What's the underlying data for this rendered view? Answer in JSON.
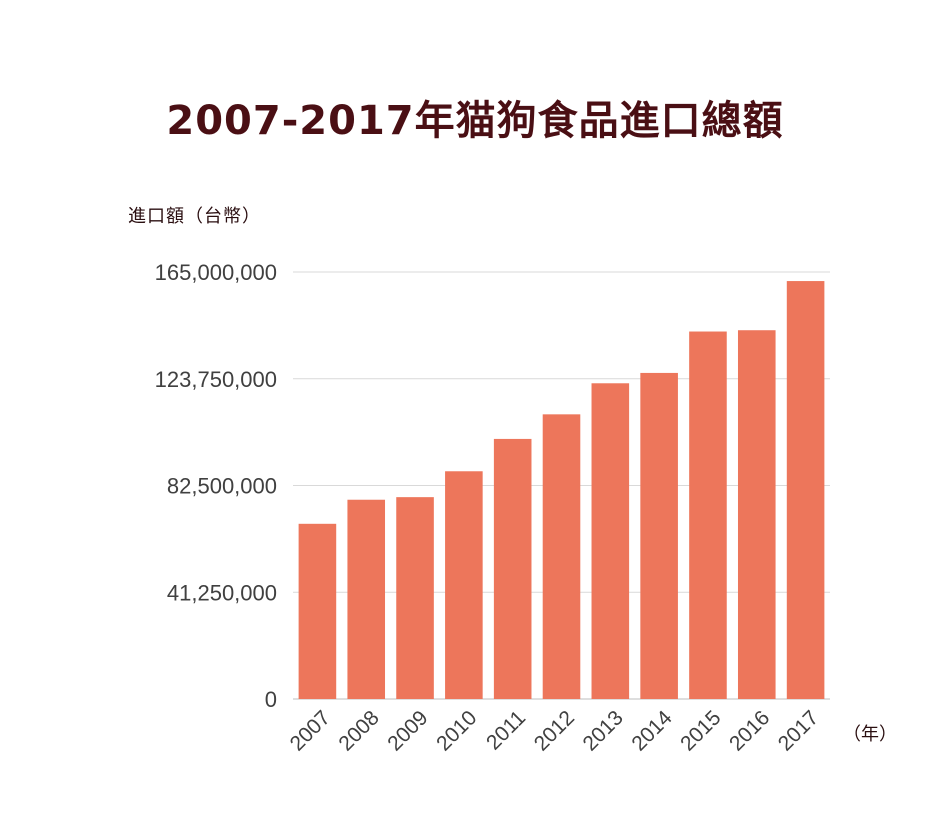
{
  "chart_data": {
    "type": "bar",
    "title": "2007-2017年猫狗食品進口總額",
    "ylabel": "進口額（台幣）",
    "xlabel": "（年）",
    "categories": [
      "2007",
      "2008",
      "2009",
      "2010",
      "2011",
      "2012",
      "2013",
      "2014",
      "2015",
      "2016",
      "2017"
    ],
    "values": [
      67700000,
      77000000,
      78000000,
      88000000,
      100500000,
      110000000,
      122000000,
      126000000,
      142000000,
      142500000,
      161500000
    ],
    "ylim": [
      0,
      165000000
    ],
    "yticks": [
      0,
      41250000,
      82500000,
      123750000,
      165000000
    ],
    "ytick_labels": [
      "0",
      "41,250,000",
      "82,500,000",
      "123,750,000",
      "165,000,000"
    ],
    "grid": true,
    "bar_color": "#ed765b",
    "grid_color": "#d9d9d9"
  }
}
